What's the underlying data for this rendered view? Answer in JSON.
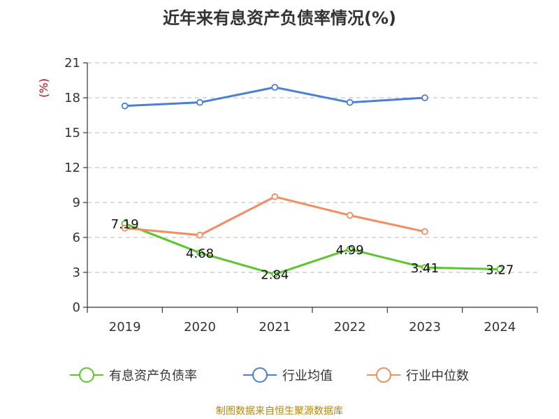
{
  "chart_data": {
    "type": "line",
    "title": "近年来有息资产负债率情况(%)",
    "ylabel": "(%)",
    "categories": [
      "2019",
      "2020",
      "2021",
      "2022",
      "2023",
      "2024"
    ],
    "ylim": [
      0,
      21
    ],
    "yticks": [
      0,
      3,
      6,
      9,
      12,
      15,
      18,
      21
    ],
    "grid": true,
    "legend_position": "bottom",
    "series": [
      {
        "name": "有息资产负债率",
        "color": "#5cc52b",
        "values": [
          7.19,
          4.68,
          2.84,
          4.99,
          3.41,
          3.27
        ],
        "data_labels": [
          "7.19",
          "4.68",
          "2.84",
          "4.99",
          "3.41",
          "3.27"
        ]
      },
      {
        "name": "行业均值",
        "color": "#4a7fd6",
        "values": [
          17.3,
          17.6,
          18.9,
          17.6,
          18.0,
          null
        ]
      },
      {
        "name": "行业中位数",
        "color": "#f48c5d",
        "values": [
          6.8,
          6.2,
          9.5,
          7.9,
          6.5,
          null
        ]
      }
    ]
  },
  "source": "制图数据来自恒生聚源数据库"
}
